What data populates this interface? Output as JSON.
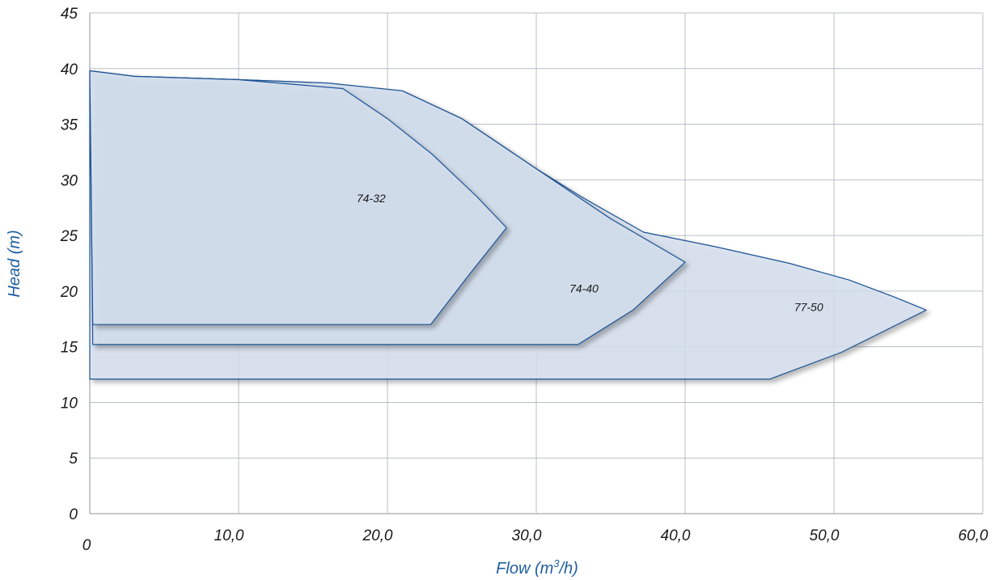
{
  "chart_data": {
    "type": "area",
    "title": "",
    "xlabel": "Flow (m",
    "xlabel_sup": "3",
    "xlabel_suffix": "/h)",
    "ylabel": "Head (m)",
    "xlim": [
      0,
      60
    ],
    "ylim": [
      0,
      45
    ],
    "x_ticks": [
      {
        "value": 0,
        "label": "0"
      },
      {
        "value": 10,
        "label": "10,0"
      },
      {
        "value": 20,
        "label": "20,0"
      },
      {
        "value": 30,
        "label": "30,0"
      },
      {
        "value": 40,
        "label": "40,0"
      },
      {
        "value": 50,
        "label": "50,0"
      },
      {
        "value": 60,
        "label": "60,0"
      }
    ],
    "y_ticks": [
      {
        "value": 0,
        "label": "0"
      },
      {
        "value": 5,
        "label": "5"
      },
      {
        "value": 10,
        "label": "10"
      },
      {
        "value": 15,
        "label": "15"
      },
      {
        "value": 20,
        "label": "20"
      },
      {
        "value": 25,
        "label": "25"
      },
      {
        "value": 30,
        "label": "30"
      },
      {
        "value": 35,
        "label": "35"
      },
      {
        "value": 40,
        "label": "40"
      },
      {
        "value": 45,
        "label": "45"
      }
    ],
    "grid": true,
    "series": [
      {
        "name": "77-50",
        "label_at": [
          48.3,
          18.2
        ],
        "color": "#1d5294",
        "points": [
          [
            0,
            39.8
          ],
          [
            3,
            39.3
          ],
          [
            10,
            39
          ],
          [
            16,
            38.7
          ],
          [
            21,
            38
          ],
          [
            25,
            35.5
          ],
          [
            30,
            31
          ],
          [
            33,
            28.5
          ],
          [
            37.2,
            25.3
          ],
          [
            42,
            24
          ],
          [
            47,
            22.5
          ],
          [
            51,
            21
          ],
          [
            54,
            19.5
          ],
          [
            56.2,
            18.3
          ],
          [
            50.5,
            14.5
          ],
          [
            45.7,
            12.1
          ],
          [
            0,
            12.1
          ]
        ]
      },
      {
        "name": "74-40",
        "label_at": [
          33.2,
          19.9
        ],
        "color": "#1d5294",
        "points": [
          [
            0,
            39.8
          ],
          [
            3,
            39.3
          ],
          [
            10,
            39
          ],
          [
            16,
            38.7
          ],
          [
            21,
            38
          ],
          [
            25,
            35.5
          ],
          [
            30,
            31
          ],
          [
            35,
            26.5
          ],
          [
            40,
            22.6
          ],
          [
            36.5,
            18.3
          ],
          [
            32.8,
            15.2
          ],
          [
            0.2,
            15.2
          ]
        ]
      },
      {
        "name": "74-32",
        "label_at": [
          18.9,
          28.0
        ],
        "color": "#1d5294",
        "points": [
          [
            0,
            39.8
          ],
          [
            3,
            39.3
          ],
          [
            10,
            39
          ],
          [
            17,
            38.2
          ],
          [
            20,
            35.5
          ],
          [
            23,
            32.3
          ],
          [
            26,
            28.5
          ],
          [
            28,
            25.7
          ],
          [
            25.5,
            21.5
          ],
          [
            22.9,
            17.0
          ],
          [
            0.2,
            17.0
          ]
        ]
      }
    ]
  }
}
